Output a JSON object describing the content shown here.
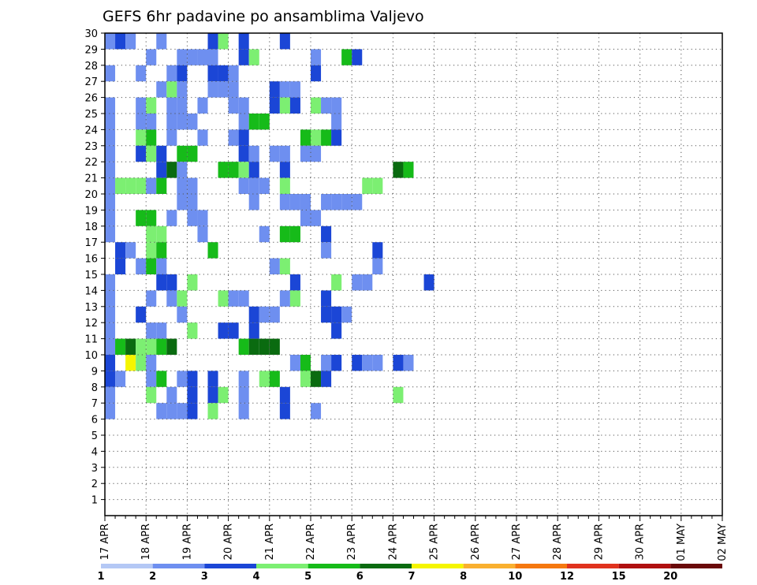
{
  "chart_data": {
    "type": "heatmap",
    "title": "GEFS 6hr padavine po ansamblima Valjevo",
    "x_tick_labels": [
      "17 APR",
      "18 APR",
      "19 APR",
      "20 APR",
      "21 APR",
      "22 APR",
      "23 APR",
      "24 APR",
      "25 APR",
      "26 APR",
      "27 APR",
      "28 APR",
      "29 APR",
      "30 APR",
      "01 MAY",
      "02 MAY"
    ],
    "y_range": [
      0,
      30
    ],
    "y_tick_labels": [
      "1",
      "2",
      "3",
      "4",
      "5",
      "6",
      "7",
      "8",
      "9",
      "10",
      "11",
      "12",
      "13",
      "14",
      "15",
      "16",
      "17",
      "18",
      "19",
      "20",
      "21",
      "22",
      "23",
      "24",
      "25",
      "26",
      "27",
      "28",
      "29",
      "30"
    ],
    "legend_labels": [
      "1",
      "2",
      "3",
      "4",
      "5",
      "6",
      "7",
      "8",
      "10",
      "12",
      "15",
      "20"
    ],
    "colors": [
      "#b4c8f5",
      "#6e8ff0",
      "#1b46d6",
      "#7cef72",
      "#16bb19",
      "#0a6b10",
      "#f5f500",
      "#f9b02f",
      "#f5780f",
      "#e0321e",
      "#b01010",
      "#6a0a0a"
    ],
    "grid": "dotted",
    "cells": [
      [
        0,
        30,
        1
      ],
      [
        1,
        30,
        2
      ],
      [
        2,
        30,
        1
      ],
      [
        5,
        30,
        1
      ],
      [
        10,
        30,
        2
      ],
      [
        11,
        30,
        3
      ],
      [
        13,
        30,
        2
      ],
      [
        17,
        30,
        2
      ],
      [
        4,
        29,
        1
      ],
      [
        7,
        29,
        1
      ],
      [
        8,
        29,
        1
      ],
      [
        9,
        29,
        1
      ],
      [
        10,
        29,
        1
      ],
      [
        13,
        29,
        2
      ],
      [
        14,
        29,
        3
      ],
      [
        20,
        29,
        1
      ],
      [
        23,
        29,
        4
      ],
      [
        24,
        29,
        2
      ],
      [
        0,
        28,
        1
      ],
      [
        3,
        28,
        1
      ],
      [
        6,
        28,
        1
      ],
      [
        7,
        28,
        2
      ],
      [
        10,
        28,
        2
      ],
      [
        11,
        28,
        2
      ],
      [
        12,
        28,
        1
      ],
      [
        20,
        28,
        2
      ],
      [
        5,
        27,
        1
      ],
      [
        6,
        27,
        3
      ],
      [
        7,
        27,
        1
      ],
      [
        10,
        27,
        1
      ],
      [
        11,
        27,
        1
      ],
      [
        12,
        27,
        1
      ],
      [
        16,
        27,
        2
      ],
      [
        17,
        27,
        1
      ],
      [
        18,
        27,
        1
      ],
      [
        0,
        26,
        1
      ],
      [
        3,
        26,
        1
      ],
      [
        4,
        26,
        3
      ],
      [
        6,
        26,
        1
      ],
      [
        7,
        26,
        1
      ],
      [
        9,
        26,
        1
      ],
      [
        12,
        26,
        1
      ],
      [
        13,
        26,
        1
      ],
      [
        16,
        26,
        2
      ],
      [
        17,
        26,
        3
      ],
      [
        18,
        26,
        2
      ],
      [
        20,
        26,
        3
      ],
      [
        21,
        26,
        1
      ],
      [
        22,
        26,
        1
      ],
      [
        0,
        25,
        1
      ],
      [
        3,
        25,
        1
      ],
      [
        4,
        25,
        1
      ],
      [
        6,
        25,
        1
      ],
      [
        7,
        25,
        1
      ],
      [
        8,
        25,
        1
      ],
      [
        13,
        25,
        1
      ],
      [
        14,
        25,
        4
      ],
      [
        15,
        25,
        4
      ],
      [
        22,
        25,
        1
      ],
      [
        0,
        24,
        1
      ],
      [
        3,
        24,
        3
      ],
      [
        4,
        24,
        4
      ],
      [
        6,
        24,
        1
      ],
      [
        9,
        24,
        1
      ],
      [
        12,
        24,
        1
      ],
      [
        13,
        24,
        2
      ],
      [
        19,
        24,
        4
      ],
      [
        20,
        24,
        3
      ],
      [
        21,
        24,
        4
      ],
      [
        22,
        24,
        2
      ],
      [
        0,
        23,
        1
      ],
      [
        3,
        23,
        2
      ],
      [
        4,
        23,
        3
      ],
      [
        5,
        23,
        2
      ],
      [
        7,
        23,
        4
      ],
      [
        8,
        23,
        4
      ],
      [
        13,
        23,
        2
      ],
      [
        14,
        23,
        1
      ],
      [
        16,
        23,
        1
      ],
      [
        17,
        23,
        1
      ],
      [
        19,
        23,
        1
      ],
      [
        20,
        23,
        1
      ],
      [
        0,
        22,
        1
      ],
      [
        5,
        22,
        2
      ],
      [
        6,
        22,
        5
      ],
      [
        7,
        22,
        1
      ],
      [
        11,
        22,
        4
      ],
      [
        12,
        22,
        4
      ],
      [
        13,
        22,
        3
      ],
      [
        14,
        22,
        2
      ],
      [
        17,
        22,
        2
      ],
      [
        28,
        22,
        5
      ],
      [
        29,
        22,
        4
      ],
      [
        0,
        21,
        1
      ],
      [
        1,
        21,
        3
      ],
      [
        2,
        21,
        3
      ],
      [
        3,
        21,
        3
      ],
      [
        4,
        21,
        1
      ],
      [
        5,
        21,
        4
      ],
      [
        7,
        21,
        1
      ],
      [
        8,
        21,
        1
      ],
      [
        13,
        21,
        1
      ],
      [
        14,
        21,
        1
      ],
      [
        15,
        21,
        1
      ],
      [
        17,
        21,
        3
      ],
      [
        25,
        21,
        3
      ],
      [
        26,
        21,
        3
      ],
      [
        0,
        20,
        1
      ],
      [
        7,
        20,
        1
      ],
      [
        8,
        20,
        1
      ],
      [
        14,
        20,
        1
      ],
      [
        17,
        20,
        1
      ],
      [
        18,
        20,
        1
      ],
      [
        19,
        20,
        1
      ],
      [
        21,
        20,
        1
      ],
      [
        22,
        20,
        1
      ],
      [
        23,
        20,
        1
      ],
      [
        24,
        20,
        1
      ],
      [
        0,
        19,
        1
      ],
      [
        3,
        19,
        4
      ],
      [
        4,
        19,
        4
      ],
      [
        6,
        19,
        1
      ],
      [
        8,
        19,
        1
      ],
      [
        9,
        19,
        1
      ],
      [
        19,
        19,
        1
      ],
      [
        20,
        19,
        1
      ],
      [
        0,
        18,
        1
      ],
      [
        4,
        18,
        3
      ],
      [
        5,
        18,
        3
      ],
      [
        9,
        18,
        1
      ],
      [
        15,
        18,
        1
      ],
      [
        17,
        18,
        4
      ],
      [
        18,
        18,
        4
      ],
      [
        21,
        18,
        2
      ],
      [
        1,
        17,
        2
      ],
      [
        2,
        17,
        1
      ],
      [
        4,
        17,
        3
      ],
      [
        5,
        17,
        4
      ],
      [
        10,
        17,
        4
      ],
      [
        21,
        17,
        1
      ],
      [
        26,
        17,
        2
      ],
      [
        1,
        16,
        2
      ],
      [
        3,
        16,
        1
      ],
      [
        4,
        16,
        4
      ],
      [
        5,
        16,
        1
      ],
      [
        16,
        16,
        1
      ],
      [
        17,
        16,
        3
      ],
      [
        26,
        16,
        1
      ],
      [
        0,
        15,
        1
      ],
      [
        5,
        15,
        2
      ],
      [
        6,
        15,
        2
      ],
      [
        8,
        15,
        3
      ],
      [
        18,
        15,
        2
      ],
      [
        22,
        15,
        3
      ],
      [
        24,
        15,
        1
      ],
      [
        25,
        15,
        1
      ],
      [
        31,
        15,
        2
      ],
      [
        0,
        14,
        1
      ],
      [
        4,
        14,
        1
      ],
      [
        6,
        14,
        1
      ],
      [
        7,
        14,
        3
      ],
      [
        11,
        14,
        3
      ],
      [
        12,
        14,
        1
      ],
      [
        13,
        14,
        1
      ],
      [
        17,
        14,
        1
      ],
      [
        18,
        14,
        3
      ],
      [
        21,
        14,
        2
      ],
      [
        0,
        13,
        1
      ],
      [
        3,
        13,
        2
      ],
      [
        7,
        13,
        1
      ],
      [
        14,
        13,
        2
      ],
      [
        15,
        13,
        1
      ],
      [
        16,
        13,
        1
      ],
      [
        21,
        13,
        2
      ],
      [
        22,
        13,
        2
      ],
      [
        23,
        13,
        1
      ],
      [
        0,
        12,
        1
      ],
      [
        4,
        12,
        1
      ],
      [
        5,
        12,
        1
      ],
      [
        8,
        12,
        3
      ],
      [
        11,
        12,
        2
      ],
      [
        12,
        12,
        2
      ],
      [
        14,
        12,
        2
      ],
      [
        22,
        12,
        2
      ],
      [
        0,
        11,
        1
      ],
      [
        1,
        11,
        4
      ],
      [
        2,
        11,
        5
      ],
      [
        3,
        11,
        3
      ],
      [
        4,
        11,
        3
      ],
      [
        5,
        11,
        4
      ],
      [
        6,
        11,
        5
      ],
      [
        13,
        11,
        4
      ],
      [
        14,
        11,
        5
      ],
      [
        15,
        11,
        5
      ],
      [
        16,
        11,
        5
      ],
      [
        0,
        10,
        2
      ],
      [
        2,
        10,
        6
      ],
      [
        3,
        10,
        3
      ],
      [
        4,
        10,
        1
      ],
      [
        18,
        10,
        1
      ],
      [
        19,
        10,
        4
      ],
      [
        21,
        10,
        1
      ],
      [
        22,
        10,
        2
      ],
      [
        24,
        10,
        2
      ],
      [
        25,
        10,
        1
      ],
      [
        26,
        10,
        1
      ],
      [
        28,
        10,
        2
      ],
      [
        29,
        10,
        1
      ],
      [
        0,
        9,
        2
      ],
      [
        1,
        9,
        1
      ],
      [
        4,
        9,
        1
      ],
      [
        5,
        9,
        4
      ],
      [
        7,
        9,
        1
      ],
      [
        8,
        9,
        2
      ],
      [
        10,
        9,
        2
      ],
      [
        13,
        9,
        1
      ],
      [
        15,
        9,
        3
      ],
      [
        16,
        9,
        4
      ],
      [
        19,
        9,
        3
      ],
      [
        20,
        9,
        5
      ],
      [
        21,
        9,
        2
      ],
      [
        0,
        8,
        1
      ],
      [
        4,
        8,
        3
      ],
      [
        6,
        8,
        1
      ],
      [
        8,
        8,
        2
      ],
      [
        10,
        8,
        2
      ],
      [
        11,
        8,
        3
      ],
      [
        13,
        8,
        1
      ],
      [
        17,
        8,
        2
      ],
      [
        28,
        8,
        3
      ],
      [
        0,
        7,
        1
      ],
      [
        5,
        7,
        1
      ],
      [
        6,
        7,
        1
      ],
      [
        7,
        7,
        1
      ],
      [
        8,
        7,
        2
      ],
      [
        10,
        7,
        3
      ],
      [
        13,
        7,
        1
      ],
      [
        17,
        7,
        2
      ],
      [
        20,
        7,
        1
      ]
    ]
  }
}
